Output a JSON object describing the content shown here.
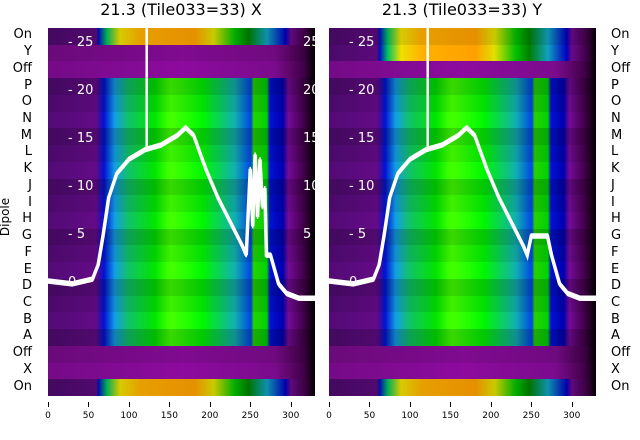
{
  "chart_data": [
    {
      "type": "heatmap",
      "title": "21.3 (Tile033=33) X",
      "ylabel": "Dipole",
      "row_labels": [
        "On",
        "Y",
        "Off",
        "P",
        "O",
        "N",
        "M",
        "L",
        "K",
        "J",
        "I",
        "H",
        "G",
        "F",
        "E",
        "D",
        "C",
        "B",
        "A",
        "Off",
        "X",
        "On"
      ],
      "x_ticks": [
        0,
        50,
        100,
        150,
        200,
        250,
        300
      ],
      "xlim": [
        0,
        330
      ],
      "inner_y_ticks": [
        0,
        5,
        10,
        15,
        20,
        25
      ],
      "inner_ylim": [
        -11.7,
        26.7
      ],
      "line": {
        "x": [
          0,
          30,
          55,
          62,
          68,
          75,
          85,
          100,
          120,
          140,
          160,
          170,
          180,
          195,
          210,
          225,
          240,
          245,
          250,
          253,
          256,
          259,
          262,
          265,
          268,
          270,
          275,
          285,
          295,
          310,
          330
        ],
        "y": [
          0.3,
          0,
          0.5,
          2,
          5,
          9,
          11.5,
          13,
          14,
          14.5,
          15.5,
          16.3,
          15.5,
          12,
          9,
          6.5,
          4,
          3,
          12,
          6,
          13.5,
          7,
          13,
          8,
          10,
          3,
          3,
          0,
          -1,
          -1.5,
          -1.5
        ]
      },
      "spike_x": 122
    },
    {
      "type": "heatmap",
      "title": "21.3 (Tile033=33) Y",
      "row_labels": [
        "On",
        "Y",
        "Off",
        "P",
        "O",
        "N",
        "M",
        "L",
        "K",
        "J",
        "I",
        "H",
        "G",
        "F",
        "E",
        "D",
        "C",
        "B",
        "A",
        "Off",
        "X",
        "On"
      ],
      "x_ticks": [
        0,
        50,
        100,
        150,
        200,
        250,
        300
      ],
      "xlim": [
        0,
        330
      ],
      "inner_y_ticks": [
        0,
        5,
        10,
        15,
        20,
        25
      ],
      "inner_ylim": [
        -11.7,
        26.7
      ],
      "line": {
        "x": [
          0,
          30,
          55,
          62,
          68,
          75,
          85,
          100,
          120,
          140,
          160,
          170,
          180,
          195,
          210,
          225,
          240,
          245,
          250,
          270,
          275,
          285,
          295,
          310,
          330
        ],
        "y": [
          0.3,
          0,
          0.5,
          2,
          5,
          9,
          11.5,
          13,
          14,
          14.5,
          15.5,
          16.3,
          15.5,
          12,
          9,
          6.5,
          4,
          3,
          5,
          5,
          3,
          0,
          -1,
          -1.5,
          -1.5
        ]
      },
      "spike_x": 122
    }
  ]
}
